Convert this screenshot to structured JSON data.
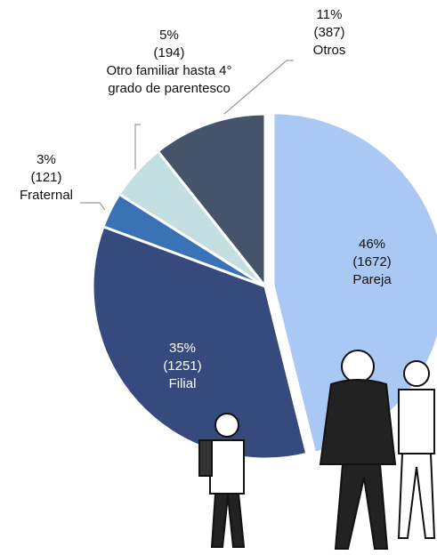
{
  "chart_data": {
    "type": "pie",
    "categories": [
      "Pareja",
      "Filial",
      "Fraternal",
      "Otro familiar hasta 4° grado de parentesco",
      "Otros"
    ],
    "values": [
      1672,
      1251,
      121,
      194,
      387
    ],
    "value_labels": [
      "(1672)",
      "(1251)",
      "(121)",
      "(194)",
      "(387)"
    ],
    "percentage_labels": [
      "46%",
      "35%",
      "3%",
      "5%",
      "11%"
    ],
    "colors": [
      "#a9c8f3",
      "#364a7d",
      "#3a72b6",
      "#c4dfe2",
      "#45546a"
    ],
    "exploded": [
      true,
      false,
      false,
      false,
      false
    ]
  }
}
